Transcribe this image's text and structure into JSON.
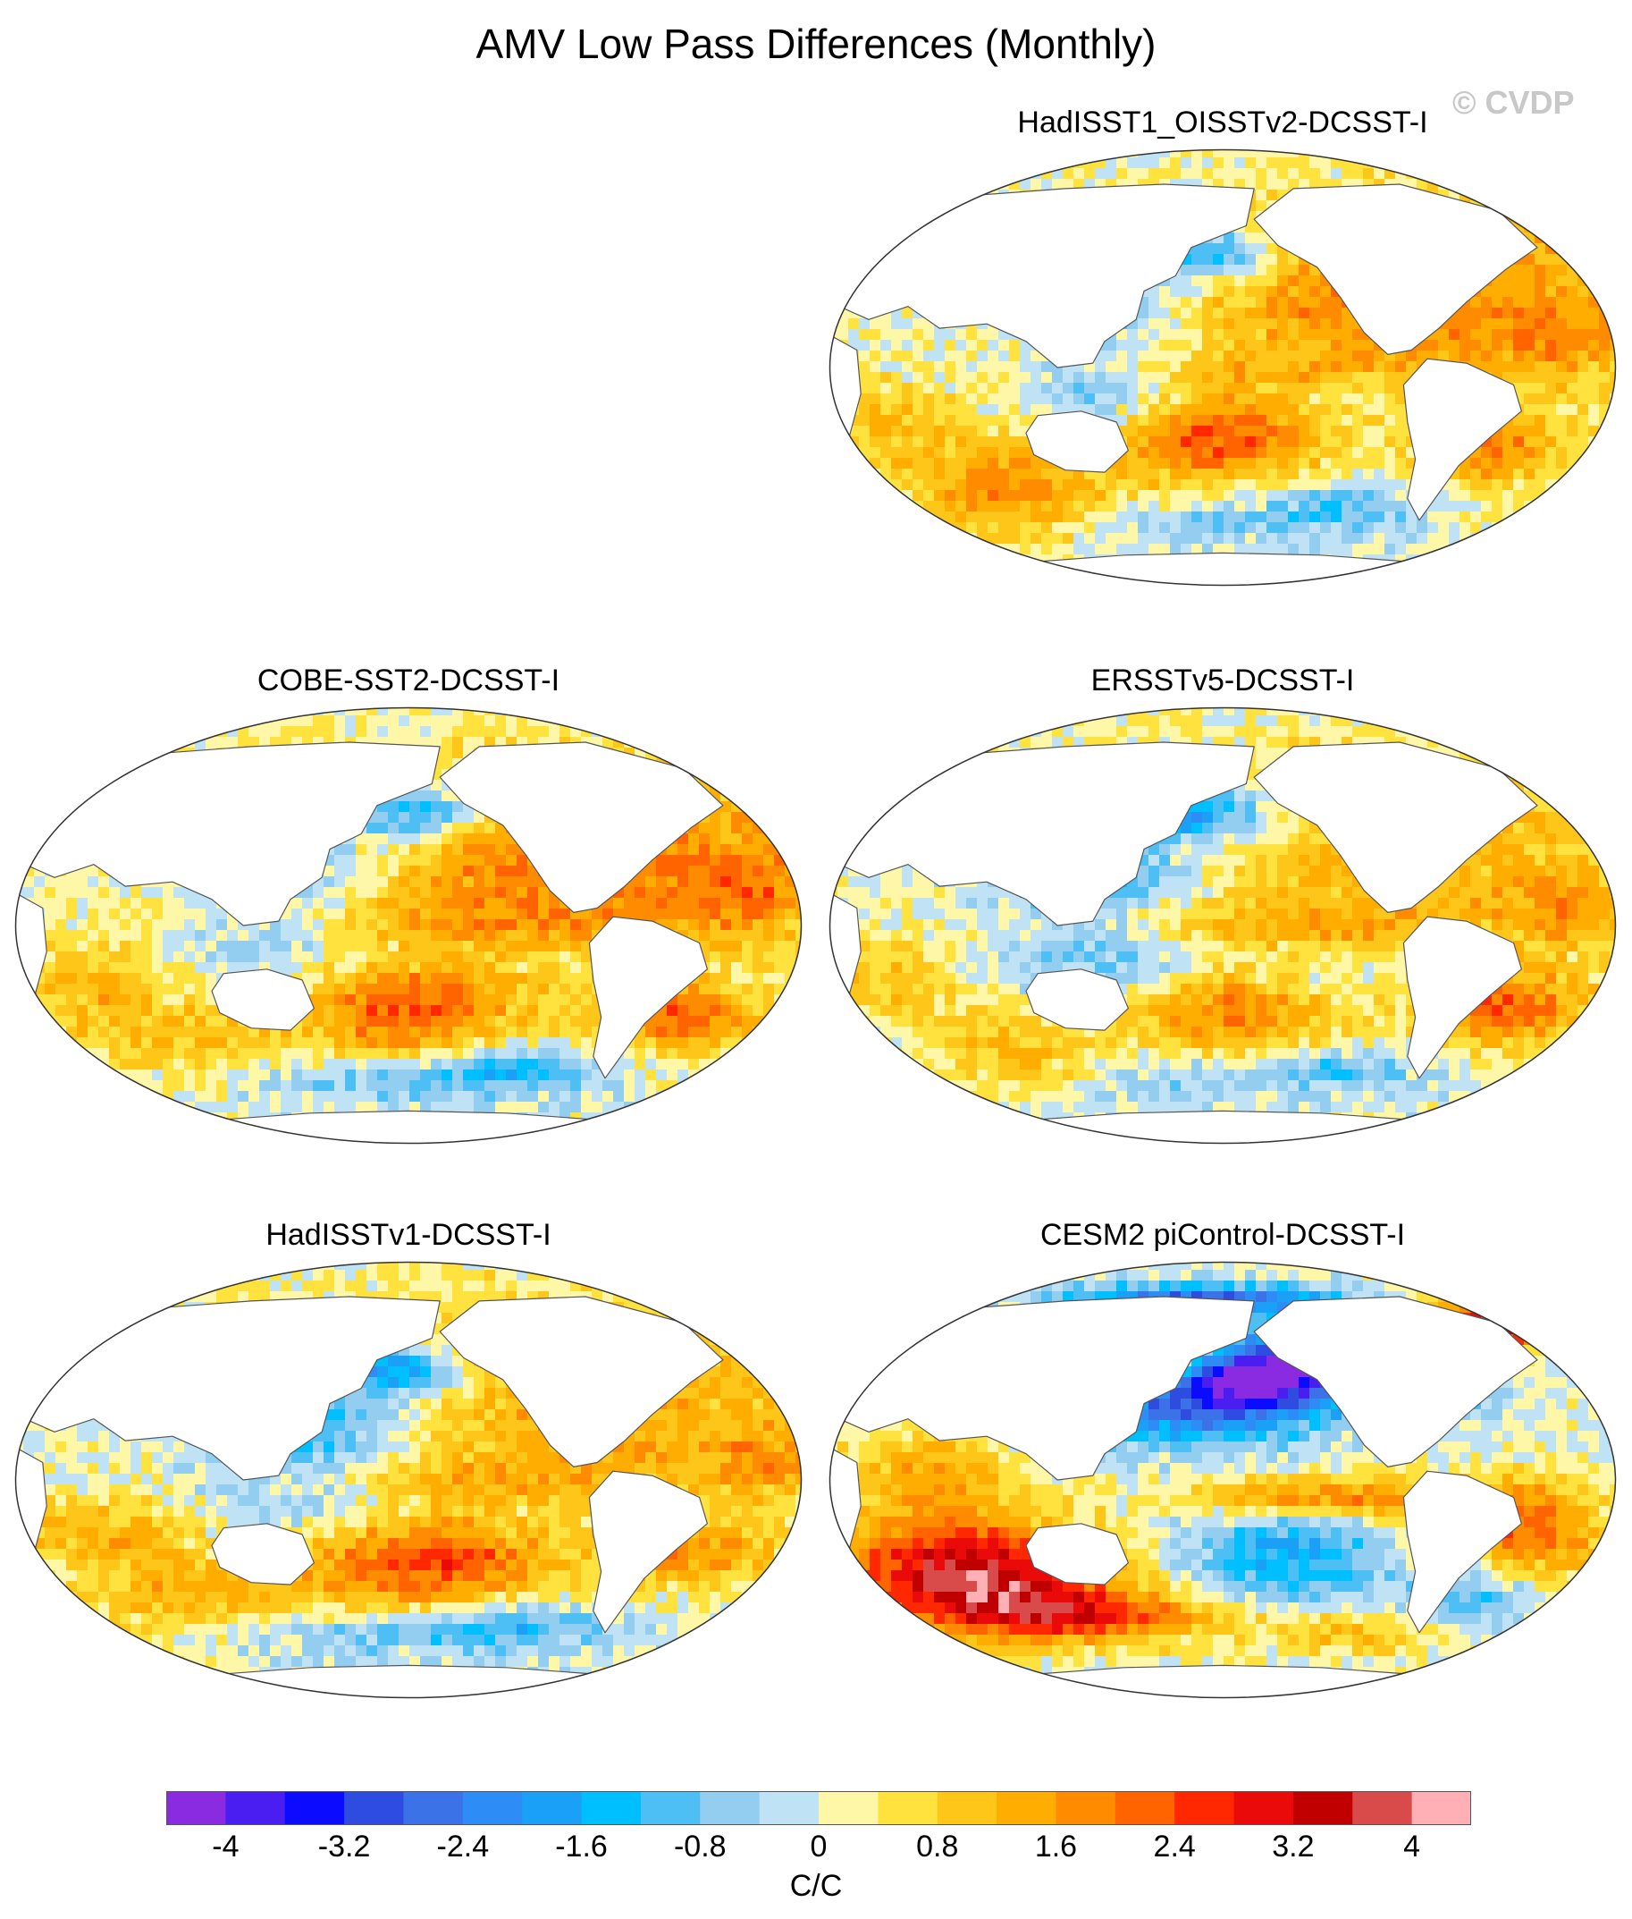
{
  "title": "AMV Low Pass Differences (Monthly)",
  "watermark": "© CVDP",
  "panels": [
    {
      "id": "p1",
      "title": "HadISST1_OISSTv2-DCSST-I",
      "style": "mild"
    },
    {
      "id": "p2",
      "title": "COBE-SST2-DCSST-I",
      "style": "mild"
    },
    {
      "id": "p3",
      "title": "ERSSTv5-DCSST-I",
      "style": "mild"
    },
    {
      "id": "p4",
      "title": "HadISSTv1-DCSST-I",
      "style": "mild"
    },
    {
      "id": "p5",
      "title": "CESM2 piControl-DCSST-I",
      "style": "strong"
    }
  ],
  "colorbar": {
    "colors": [
      "#8a2be2",
      "#4a1ef0",
      "#0b0bff",
      "#2e4de0",
      "#3b72e8",
      "#2d8cf5",
      "#1aa0f7",
      "#00bfff",
      "#4dbff5",
      "#93cdf0",
      "#bfe3f5",
      "#fff7a8",
      "#ffe23d",
      "#ffc61a",
      "#ffad00",
      "#ff8c00",
      "#ff6400",
      "#ff2800",
      "#ea0a0a",
      "#c00000",
      "#d94a4a",
      "#ffb0b5"
    ],
    "tick_labels": [
      "-4",
      "-3.2",
      "-2.4",
      "-1.6",
      "-0.8",
      "0",
      "0.8",
      "1.6",
      "2.4",
      "3.2",
      "4"
    ],
    "units": "C/C"
  }
}
